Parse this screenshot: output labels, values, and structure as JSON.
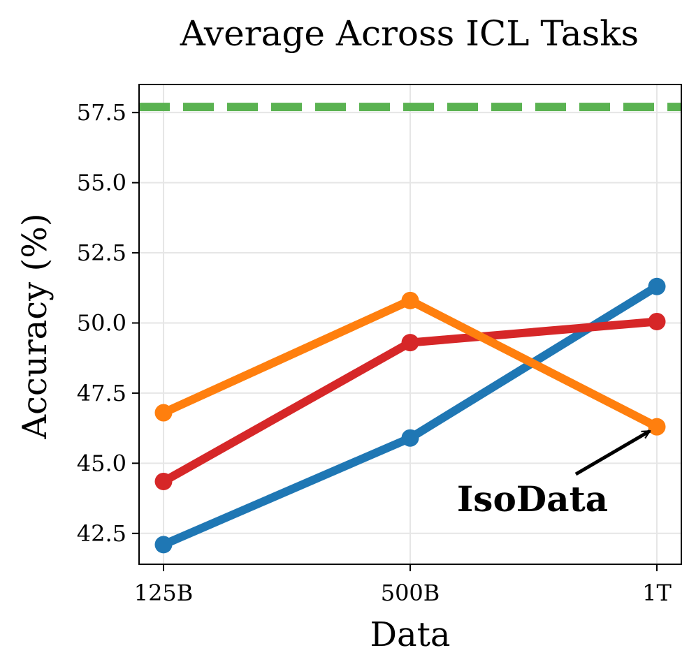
{
  "chart_data": {
    "type": "line",
    "title": "Average Across ICL Tasks",
    "xlabel": "Data",
    "ylabel": "Accuracy (%)",
    "categories": [
      "125B",
      "500B",
      "1T"
    ],
    "ylim": [
      41.4,
      58.5
    ],
    "yticks": [
      42.5,
      45.0,
      47.5,
      50.0,
      52.5,
      55.0,
      57.5
    ],
    "grid": true,
    "series": [
      {
        "color": "#1f77b4",
        "values": [
          42.1,
          45.9,
          51.3
        ]
      },
      {
        "color": "#d62728",
        "values": [
          44.35,
          49.3,
          50.05
        ]
      },
      {
        "color": "#ff7f0e",
        "values": [
          46.8,
          50.8,
          46.3
        ]
      }
    ],
    "reference_line": {
      "value": 57.7,
      "color": "#5ab251",
      "style": "dashed"
    },
    "annotations": [
      {
        "text": "IsoData",
        "target_category": "1T",
        "target_value": 46.3
      }
    ]
  }
}
